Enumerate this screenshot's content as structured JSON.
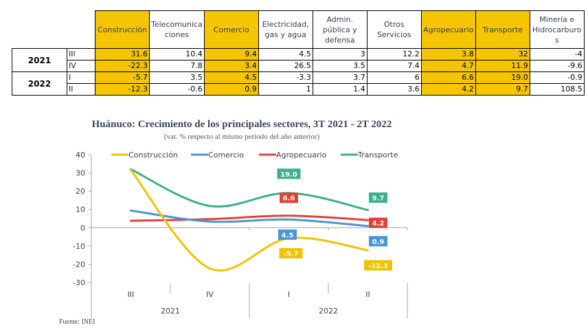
{
  "table": {
    "headers": [
      "Construcción",
      "Telecomunica ciones",
      "Comercio",
      "Electricidad, gas y agua",
      "Admin. pública y defensa",
      "Otros Servicios",
      "Agropecuario",
      "Transporte",
      "Minería e Hidrocarburo s"
    ],
    "header_lines": [
      [
        "Construcción"
      ],
      [
        "Telecomunica",
        "ciones"
      ],
      [
        "Comercio"
      ],
      [
        "Electricidad,",
        "gas y agua"
      ],
      [
        "Admin.",
        "pública y",
        "defensa"
      ],
      [
        "Otros",
        "Servicios"
      ],
      [
        "Agropecuario"
      ],
      [
        "Transporte"
      ],
      [
        "Minería e",
        "Hidrocarburo",
        "s"
      ]
    ],
    "highlighted_columns": [
      0,
      2,
      6,
      7
    ],
    "highlight_color": "#f4c500",
    "years": [
      {
        "year": "2021",
        "rows": [
          {
            "quarter": "III",
            "values": [
              "31.6",
              "10.4",
              "9.4",
              "4.5",
              "3",
              "12.2",
              "3.8",
              "32",
              "-4"
            ]
          },
          {
            "quarter": "IV",
            "values": [
              "-22.3",
              "7.8",
              "3.4",
              "26.5",
              "3.5",
              "7.4",
              "4.7",
              "11.9",
              "-9.6"
            ]
          }
        ]
      },
      {
        "year": "2022",
        "rows": [
          {
            "quarter": "I",
            "values": [
              "-5.7",
              "3.5",
              "4.5",
              "-3.3",
              "3.7",
              "6",
              "6.6",
              "19.0",
              "-0.9"
            ]
          },
          {
            "quarter": "II",
            "values": [
              "-12.3",
              "-0.6",
              "0.9",
              "1",
              "1.4",
              "3.6",
              "4.2",
              "9.7",
              "108.5"
            ]
          }
        ]
      }
    ]
  },
  "chart_data": {
    "type": "line",
    "title": "Huánuco: Crecimiento de los principales sectores, 3T 2021 - 2T 2022",
    "subtitle": "(var. % respecto al mismo periodo del año anterior)",
    "categories": [
      "III",
      "IV",
      "I",
      "II"
    ],
    "category_groups": [
      {
        "label": "2021",
        "span": 2
      },
      {
        "label": "2022",
        "span": 2
      }
    ],
    "ylim": [
      -30,
      40
    ],
    "yticks": [
      40,
      30,
      20,
      10,
      0,
      -10,
      -20,
      -30
    ],
    "ytick_labels": [
      "40",
      "30",
      "20",
      "10",
      "0",
      "-10",
      "-20",
      "-30"
    ],
    "smooth": true,
    "legend_position": "top",
    "series": [
      {
        "name": "Construcción",
        "color": "#f2c200",
        "values": [
          31.6,
          -22.3,
          -5.7,
          -12.3
        ],
        "labels": [
          null,
          null,
          "-5.7",
          "-12.3"
        ],
        "label_side": "below"
      },
      {
        "name": "Comercio",
        "color": "#4b95d3",
        "values": [
          9.4,
          3.4,
          4.5,
          0.9
        ],
        "labels": [
          null,
          null,
          "4.5",
          "0.9"
        ],
        "label_side": "below"
      },
      {
        "name": "Agropecuario",
        "color": "#e2413a",
        "values": [
          3.8,
          4.7,
          6.6,
          4.2
        ],
        "labels": [
          null,
          null,
          "6.6",
          "4.2"
        ],
        "label_side": "above"
      },
      {
        "name": "Transporte",
        "color": "#3caf8d",
        "values": [
          32,
          11.9,
          19.0,
          9.7
        ],
        "labels": [
          null,
          null,
          "19.0",
          "9.7"
        ],
        "label_side": "above"
      }
    ],
    "source": "Fuente: INEI"
  }
}
